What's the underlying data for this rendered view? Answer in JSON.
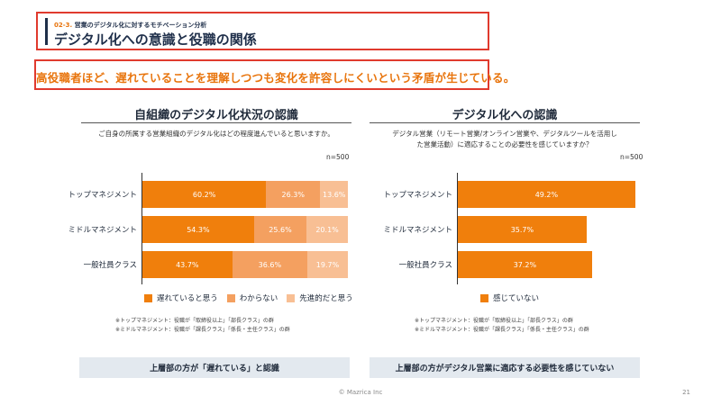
{
  "header": {
    "section_number": "02-3.",
    "section_label": "営業のデジタル化に対するモチベーション分析",
    "title": "デジタル化への意識と役職の関係"
  },
  "message": "高役職者ほど、遅れていることを理解しつつも変化を許容しにくいという矛盾が生じている。",
  "colors": {
    "accent": "#e03a2e",
    "series_dark": "#f07f0c",
    "series_mid": "#f4a060",
    "series_light": "#f8bf94",
    "summary_bg": "#e3e9ef"
  },
  "chart_data": [
    {
      "type": "bar",
      "orientation": "horizontal",
      "stacked": true,
      "title": "自組織のデジタル化状況の認識",
      "question": "ご自身の所属する営業組織のデジタル化はどの程度進んでいると思いますか。",
      "n_label": "n=500",
      "categories": [
        "トップマネジメント",
        "ミドルマネジメント",
        "一般社員クラス"
      ],
      "series": [
        {
          "name": "遅れていると思う",
          "values": [
            60.2,
            54.3,
            43.7
          ],
          "labels": [
            "60.2%",
            "54.3%",
            "43.7%"
          ]
        },
        {
          "name": "わからない",
          "values": [
            26.3,
            25.6,
            36.6
          ],
          "labels": [
            "26.3%",
            "25.6%",
            "36.6%"
          ]
        },
        {
          "name": "先進的だと思う",
          "values": [
            13.6,
            20.1,
            19.7
          ],
          "labels": [
            "13.6%",
            "20.1%",
            "19.7%"
          ]
        }
      ],
      "xlim": [
        0,
        100
      ],
      "legend": "bottom",
      "footnotes": [
        "※トップマネジメント：役職が「取締役以上」「部長クラス」の群",
        "※ミドルマネジメント：役職が「課長クラス」「係長・主任クラス」の群"
      ],
      "summary": "上層部の方が「遅れている」と認識"
    },
    {
      "type": "bar",
      "orientation": "horizontal",
      "stacked": false,
      "title": "デジタル化への認識",
      "question_lines": [
        "デジタル営業（リモート営業/オンライン営業や、デジタルツールを活用し",
        "た営業活動）に適応することの必要性を感じていますか？"
      ],
      "n_label": "n=500",
      "categories": [
        "トップマネジメント",
        "ミドルマネジメント",
        "一般社員クラス"
      ],
      "series": [
        {
          "name": "感じていない",
          "values": [
            49.2,
            35.7,
            37.2
          ],
          "labels": [
            "49.2%",
            "35.7%",
            "37.2%"
          ]
        }
      ],
      "xlim": [
        0,
        100
      ],
      "legend": "bottom",
      "footnotes": [
        "※トップマネジメント：役職が「取締役以上」「部長クラス」の群",
        "※ミドルマネジメント：役職が「課長クラス」「係長・主任クラス」の群"
      ],
      "summary": "上層部の方がデジタル営業に適応する必要性を感じていない"
    }
  ],
  "footer": {
    "copyright": "© Mazrica Inc",
    "page_number": "21"
  }
}
